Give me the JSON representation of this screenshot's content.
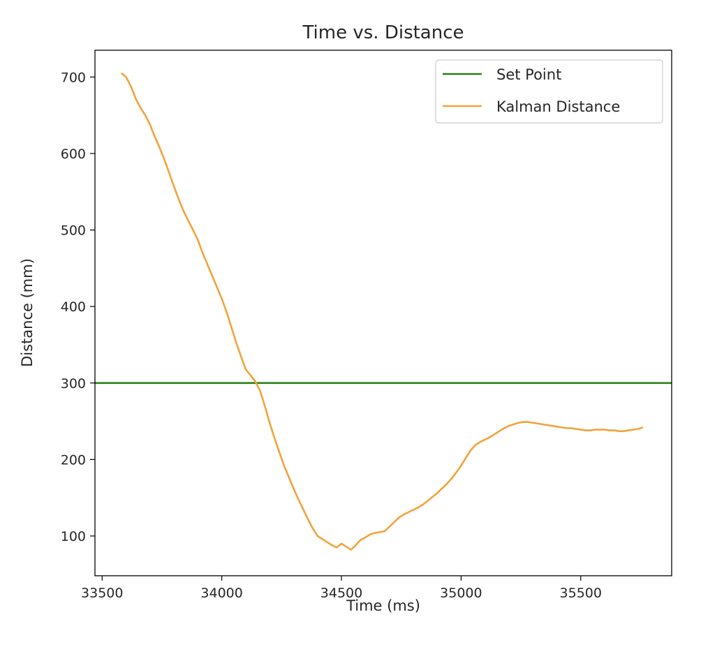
{
  "chart_data": {
    "type": "line",
    "title": "Time vs. Distance",
    "xlabel": "Time (ms)",
    "ylabel": "Distance (mm)",
    "xlim": [
      33470,
      35880
    ],
    "ylim": [
      48,
      735
    ],
    "xticks": [
      33500,
      34000,
      34500,
      35000,
      35500
    ],
    "yticks": [
      100,
      200,
      300,
      400,
      500,
      600,
      700
    ],
    "grid": false,
    "legend_position": "top-right",
    "series": [
      {
        "name": "Set Point",
        "color": "#2e7d1a",
        "kind": "hline",
        "y": 300
      },
      {
        "name": "Kalman Distance",
        "color": "#f2a33a",
        "kind": "line",
        "x": [
          33580,
          33600,
          33620,
          33640,
          33660,
          33680,
          33700,
          33720,
          33740,
          33760,
          33780,
          33800,
          33820,
          33840,
          33860,
          33880,
          33900,
          33920,
          33940,
          33960,
          33980,
          34000,
          34020,
          34040,
          34060,
          34080,
          34100,
          34120,
          34140,
          34160,
          34180,
          34200,
          34220,
          34240,
          34260,
          34280,
          34300,
          34320,
          34340,
          34360,
          34380,
          34400,
          34420,
          34440,
          34460,
          34480,
          34500,
          34520,
          34540,
          34560,
          34580,
          34600,
          34620,
          34640,
          34660,
          34680,
          34700,
          34720,
          34740,
          34760,
          34780,
          34800,
          34820,
          34840,
          34860,
          34880,
          34900,
          34920,
          34940,
          34960,
          34980,
          35000,
          35020,
          35040,
          35060,
          35080,
          35100,
          35120,
          35140,
          35160,
          35180,
          35200,
          35220,
          35240,
          35260,
          35280,
          35300,
          35320,
          35340,
          35360,
          35380,
          35400,
          35420,
          35440,
          35460,
          35480,
          35500,
          35520,
          35540,
          35560,
          35580,
          35600,
          35620,
          35640,
          35660,
          35680,
          35700,
          35720,
          35740,
          35760
        ],
        "y": [
          705,
          700,
          688,
          672,
          660,
          650,
          638,
          622,
          608,
          592,
          575,
          557,
          540,
          525,
          512,
          500,
          487,
          470,
          455,
          440,
          425,
          410,
          393,
          373,
          353,
          335,
          318,
          310,
          302,
          290,
          270,
          248,
          228,
          210,
          192,
          177,
          162,
          148,
          135,
          122,
          110,
          100,
          96,
          92,
          88,
          85,
          90,
          86,
          82,
          88,
          95,
          98,
          102,
          104,
          105,
          106,
          112,
          118,
          124,
          128,
          131,
          134,
          137,
          141,
          146,
          151,
          156,
          162,
          168,
          175,
          183,
          192,
          202,
          212,
          219,
          223,
          226,
          229,
          233,
          237,
          241,
          244,
          246,
          248,
          249,
          249,
          248,
          247,
          246,
          245,
          244,
          243,
          242,
          241,
          241,
          240,
          239,
          238,
          238,
          239,
          239,
          239,
          238,
          238,
          237,
          237,
          238,
          239,
          240,
          242
        ]
      }
    ]
  }
}
